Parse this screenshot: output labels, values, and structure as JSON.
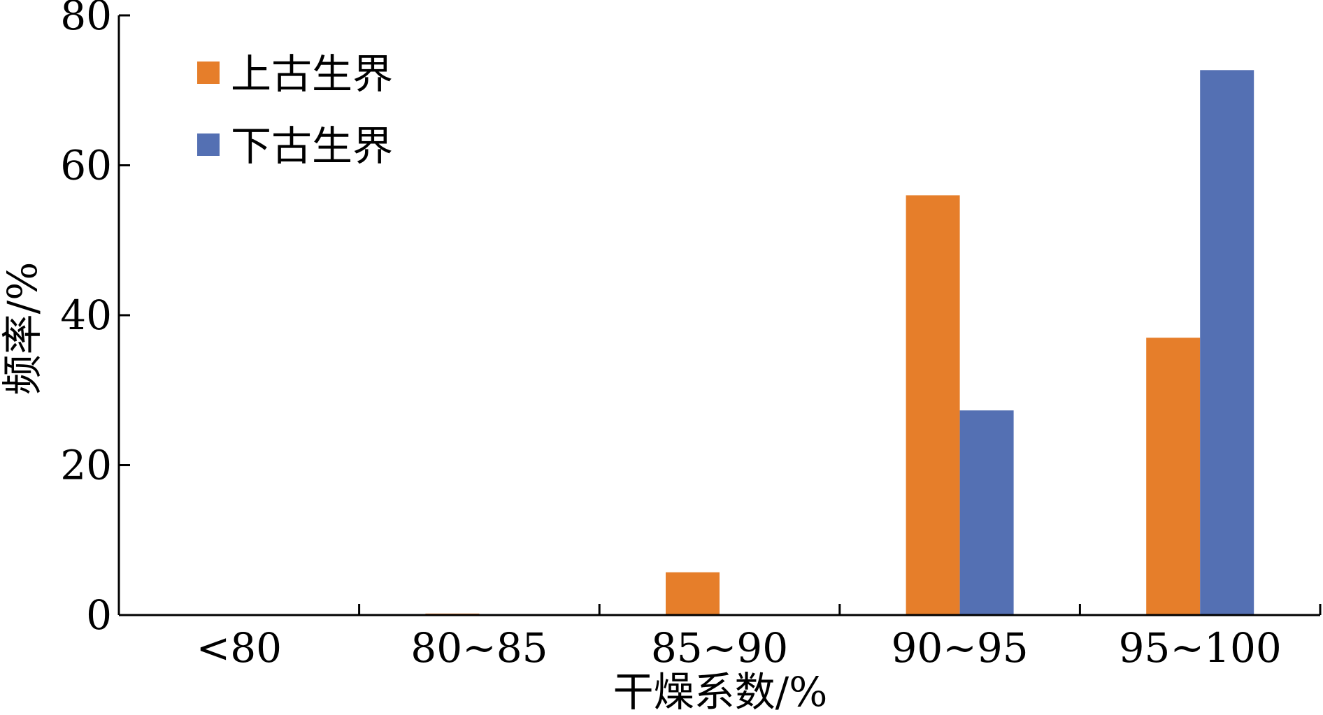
{
  "chart_data": {
    "type": "bar",
    "xlabel": "干燥系数/%",
    "ylabel": "频率/%",
    "ylim": [
      0,
      80
    ],
    "yticks": [
      "0",
      "20",
      "40",
      "60",
      "80"
    ],
    "categories": [
      "<80",
      "80~85",
      "85~90",
      "90~95",
      "95~100"
    ],
    "series": [
      {
        "name": "上古生界",
        "color": "#E67E2A",
        "values": [
          0,
          0.2,
          5.7,
          56,
          37
        ]
      },
      {
        "name": "下古生界",
        "color": "#5470B3",
        "values": [
          0,
          0,
          0,
          27.3,
          72.7
        ]
      }
    ],
    "legend_position": "top-left",
    "grid": false
  }
}
